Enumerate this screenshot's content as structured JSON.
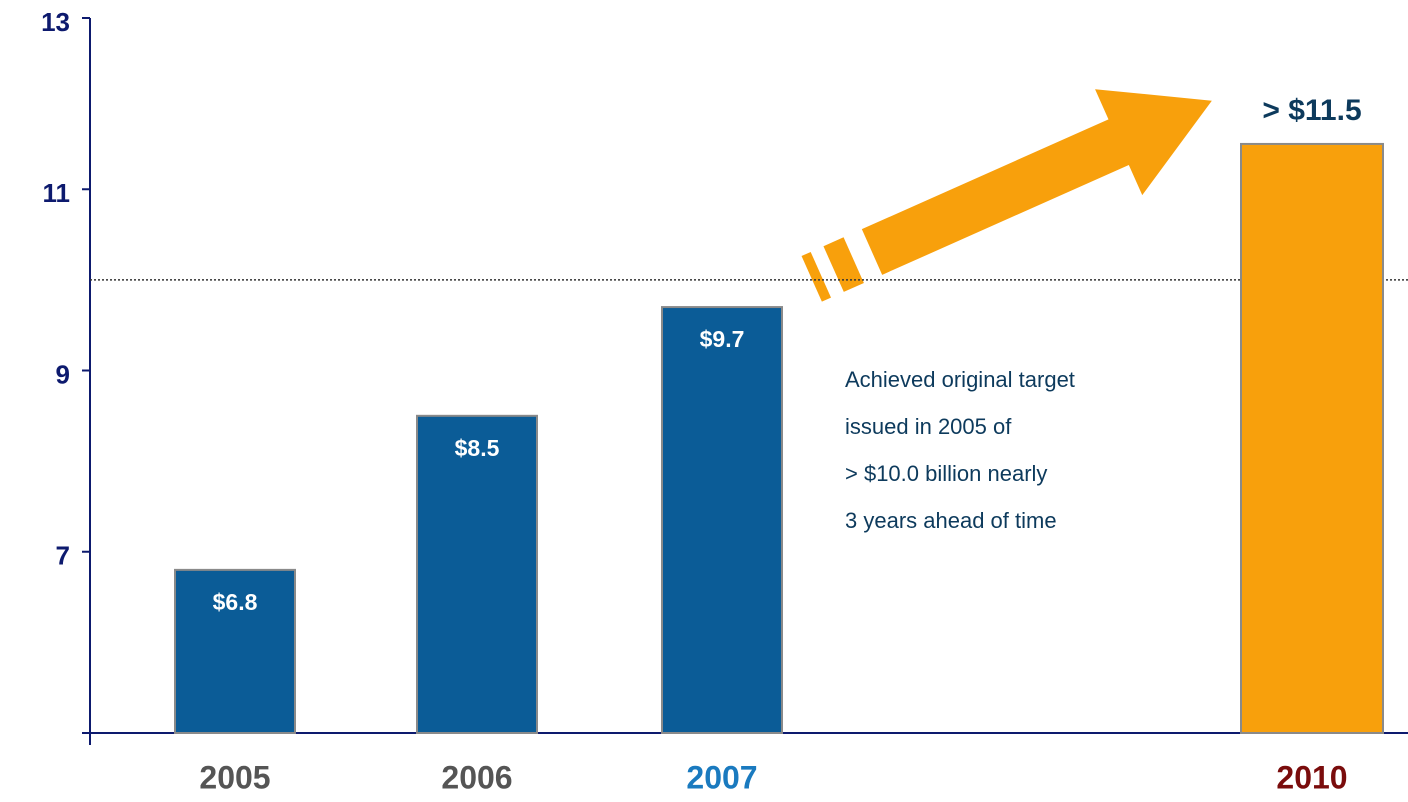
{
  "chart_data": {
    "type": "bar",
    "categories": [
      "2005",
      "2006",
      "2007",
      "2010"
    ],
    "values": [
      6.8,
      8.5,
      9.7,
      11.5
    ],
    "value_labels": [
      "$6.8",
      "$8.5",
      "$9.7",
      "> $11.5"
    ],
    "colors": [
      "#0b5c97",
      "#0b5c97",
      "#0b5c97",
      "#f8a00c"
    ],
    "category_colors": [
      "#555555",
      "#555555",
      "#1a7abf",
      "#7a0c0c"
    ],
    "ylim": [
      5,
      13
    ],
    "yticks": [
      7,
      9,
      11,
      13
    ],
    "target_line": 10,
    "annotation": [
      "Achieved original target",
      "issued in 2005 of",
      "> $10.0 billion nearly",
      "3 years ahead of time"
    ]
  }
}
